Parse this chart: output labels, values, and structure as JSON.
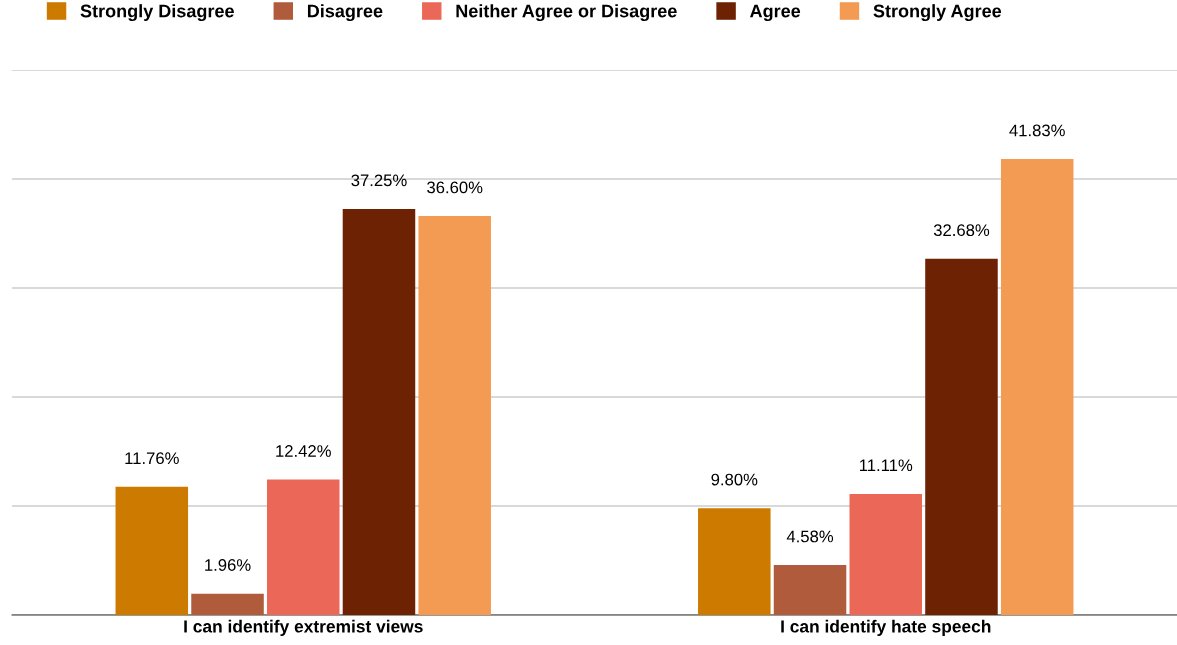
{
  "chart_data": {
    "type": "bar",
    "categories": [
      "I can identify extremist views",
      "I can identify hate speech"
    ],
    "series": [
      {
        "name": "Strongly Disagree",
        "color": "#cc7a00",
        "values": [
          11.76,
          9.8
        ],
        "value_labels": [
          "11.76%",
          "9.80%"
        ]
      },
      {
        "name": "Disagree",
        "color": "#b05b3b",
        "values": [
          1.96,
          4.58
        ],
        "value_labels": [
          "1.96%",
          "4.58%"
        ]
      },
      {
        "name": "Neither Agree or Disagree",
        "color": "#eb6859",
        "values": [
          12.42,
          11.11
        ],
        "value_labels": [
          "12.42%",
          "11.11%"
        ]
      },
      {
        "name": "Agree",
        "color": "#6e2204",
        "values": [
          37.25,
          32.68
        ],
        "value_labels": [
          "37.25%",
          "32.68%"
        ]
      },
      {
        "name": "Strongly Agree",
        "color": "#f39a53",
        "values": [
          36.6,
          41.83
        ],
        "value_labels": [
          "36.60%",
          "41.83%"
        ]
      }
    ],
    "ylim": [
      0,
      50
    ],
    "yticks": [
      {
        "value": 0,
        "label": null
      },
      {
        "value": 10,
        "label": null
      },
      {
        "value": 20,
        "label": null
      },
      {
        "value": 30,
        "label": null
      },
      {
        "value": 40,
        "label": null
      },
      {
        "value": 50,
        "label": null
      }
    ],
    "tick_labels": "x",
    "grid": "y",
    "legend": "top"
  }
}
